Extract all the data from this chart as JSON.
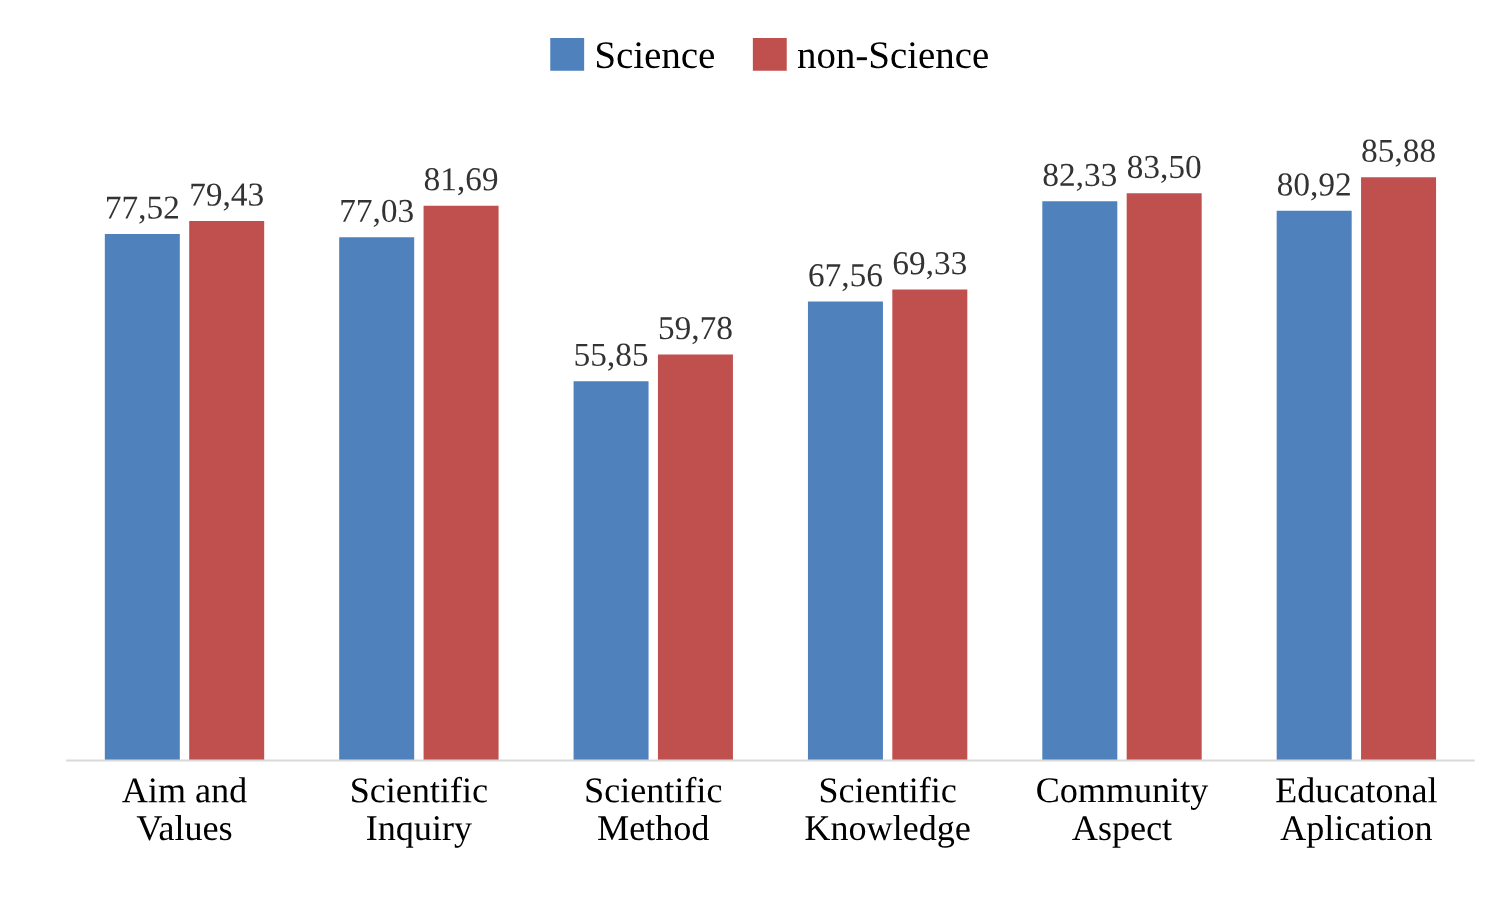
{
  "chart_data": {
    "type": "bar",
    "categories": [
      "Aim and\nValues",
      "Scientific\nInquiry",
      "Scientific\nMethod",
      "Scientific\nKnowledge",
      "Community\nAspect",
      "Educatonal\nAplication"
    ],
    "series": [
      {
        "name": "Science",
        "color": "#4f81bd",
        "values": [
          77.52,
          77.03,
          55.85,
          67.56,
          82.33,
          80.92
        ],
        "value_labels": [
          "77,52",
          "77,03",
          "55,85",
          "67,56",
          "82,33",
          "80,92"
        ]
      },
      {
        "name": "non-Science",
        "color": "#c0504d",
        "values": [
          79.43,
          81.69,
          59.78,
          69.33,
          83.5,
          85.88
        ],
        "value_labels": [
          "79,43",
          "81,69",
          "59,78",
          "69,33",
          "83,50",
          "85,88"
        ]
      }
    ],
    "legend": "top",
    "grid": false
  }
}
